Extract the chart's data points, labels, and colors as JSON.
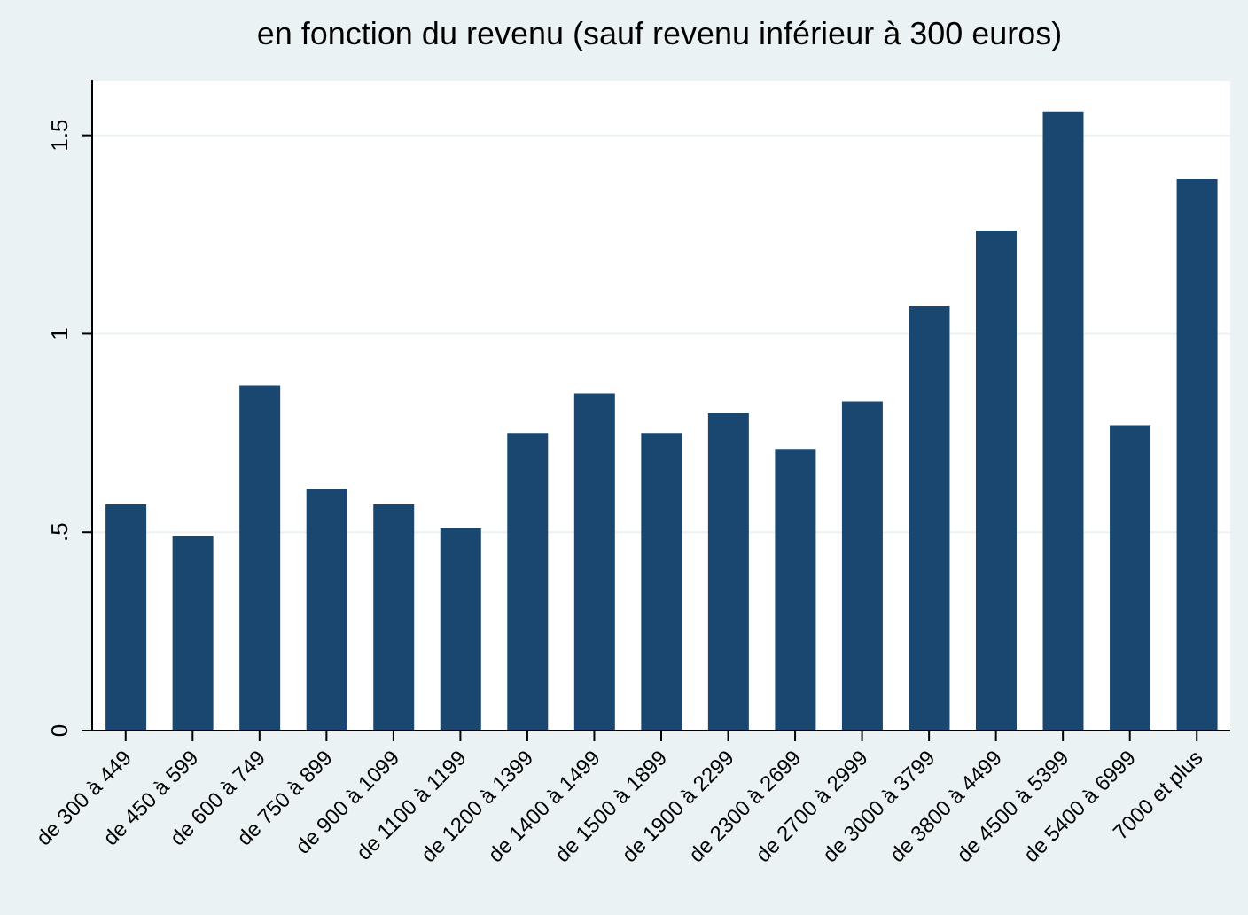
{
  "chart_data": {
    "type": "bar",
    "title": "en fonction du revenu (sauf revenu inférieur à 300 euros)",
    "categories": [
      "de 300 à 449",
      "de 450 à 599",
      "de 600 à 749",
      "de 750 à 899",
      "de 900 à 1099",
      "de 1100 à 1199",
      "de 1200 à 1399",
      "de 1400 à 1499",
      "de 1500 à 1899",
      "de 1900 à 2299",
      "de 2300 à 2699",
      "de 2700 à 2999",
      "de 3000 à 3799",
      "de 3800 à 4499",
      "de 4500 à 5399",
      "de 5400 à 6999",
      "7000 et plus"
    ],
    "values": [
      0.57,
      0.49,
      0.87,
      0.61,
      0.57,
      0.51,
      0.75,
      0.85,
      0.75,
      0.8,
      0.71,
      0.83,
      1.07,
      1.26,
      1.56,
      0.77,
      1.39
    ],
    "color": "#1a476f",
    "ylim": [
      0,
      1.64
    ],
    "yticks": [
      0,
      {
        "value": 0.5,
        "label": ".5"
      },
      1,
      1.5
    ],
    "grid": "y"
  }
}
